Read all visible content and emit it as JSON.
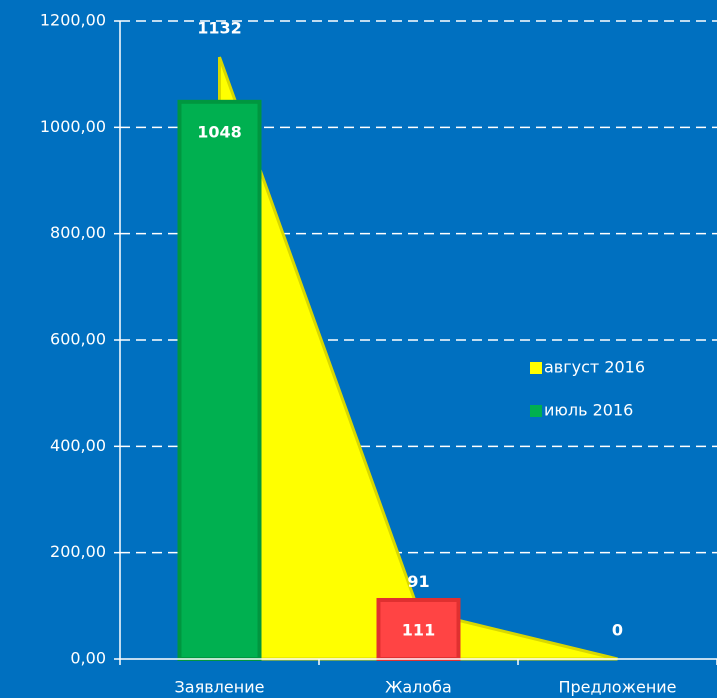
{
  "chart_data": {
    "type": "bar-area",
    "categories": [
      "Заявление",
      "Жалоба",
      "Предложение"
    ],
    "series": [
      {
        "name": "август 2016",
        "type": "area",
        "color": "#ffff00",
        "values": [
          1132,
          91,
          0
        ]
      },
      {
        "name": "июль 2016",
        "type": "bar",
        "color": "#00b050",
        "colors": [
          "#00b050",
          "#ff4444",
          "#00b050"
        ],
        "values": [
          1048,
          111,
          null
        ]
      }
    ],
    "ylim": [
      0,
      1200
    ],
    "yticks": [
      {
        "value": 0,
        "label": "0,00"
      },
      {
        "value": 200,
        "label": "200,00"
      },
      {
        "value": 400,
        "label": "400,00"
      },
      {
        "value": 600,
        "label": "600,00"
      },
      {
        "value": 800,
        "label": "800,00"
      },
      {
        "value": 1000,
        "label": "1000,00"
      },
      {
        "value": 1200,
        "label": "1200,00"
      }
    ],
    "grid": true,
    "legend": "right"
  }
}
